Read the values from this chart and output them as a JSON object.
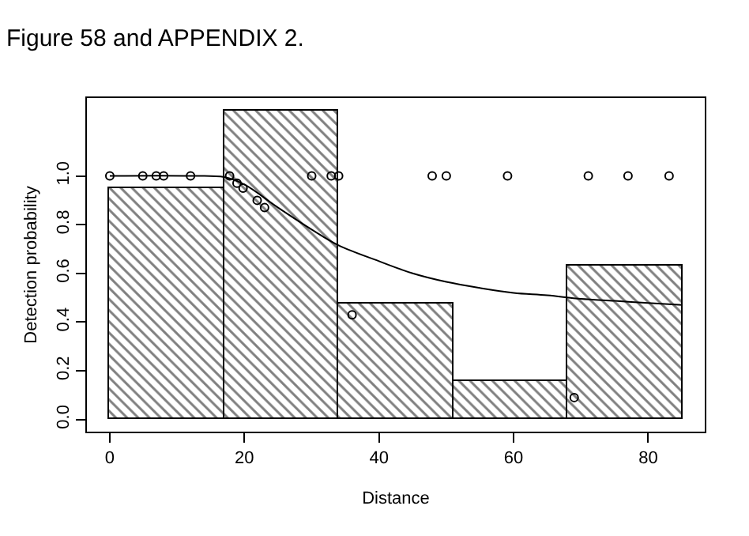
{
  "chart_data": {
    "type": "histogram",
    "annotations": [
      "Figure 58 and APPENDIX 2."
    ],
    "xlabel": "Distance",
    "ylabel": "Detection probability",
    "bins": [
      0,
      17,
      34,
      51,
      68,
      85
    ],
    "values": [
      0.95,
      1.27,
      0.475,
      0.16,
      0.635
    ],
    "color": "#000000",
    "series": [
      {
        "type": "scatter",
        "marker": "circle",
        "color": "#000000",
        "x": [
          0,
          4.9,
          6.9,
          8,
          12,
          17.8,
          18.9,
          19.8,
          21.9,
          23,
          30,
          32.9,
          34,
          36,
          47.9,
          50,
          59.1,
          69,
          71.1,
          77,
          83.1
        ],
        "values": [
          1,
          1,
          1,
          1,
          1,
          1,
          0.97,
          0.95,
          0.9,
          0.87,
          1,
          1,
          1,
          0.43,
          1,
          1,
          1,
          0.09,
          1,
          1,
          1
        ]
      },
      {
        "type": "line",
        "line_style": "solid",
        "color": "#000000",
        "x": [
          0,
          12,
          17,
          20,
          25,
          30,
          34,
          40,
          45,
          50,
          55,
          60,
          65,
          70,
          75,
          80,
          85
        ],
        "values": [
          1,
          1,
          0.995,
          0.965,
          0.87,
          0.78,
          0.715,
          0.65,
          0.6,
          0.565,
          0.54,
          0.52,
          0.51,
          0.495,
          0.487,
          0.478,
          0.47
        ]
      }
    ],
    "xlim": [
      -3.4,
      88.4
    ],
    "ylim": [
      -0.05,
      1.32
    ],
    "xticks": [
      0,
      20,
      40,
      60,
      80
    ],
    "yticks": [
      {
        "value": 0,
        "label": "0.0"
      },
      {
        "value": 0.2,
        "label": "0.2"
      },
      {
        "value": 0.4,
        "label": "0.4"
      },
      {
        "value": 0.6,
        "label": "0.6"
      },
      {
        "value": 0.8,
        "label": "0.8"
      },
      {
        "value": 1,
        "label": "1.0"
      }
    ]
  }
}
